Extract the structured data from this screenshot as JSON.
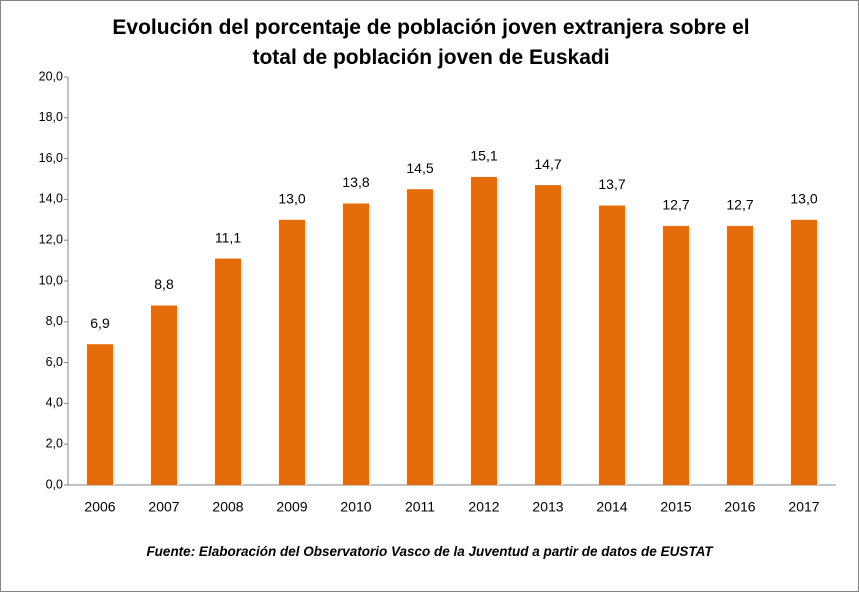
{
  "chart_data": {
    "type": "bar",
    "title": "Evolución del porcentaje de población joven extranjera sobre el total de población joven de Euskadi",
    "categories": [
      "2006",
      "2007",
      "2008",
      "2009",
      "2010",
      "2011",
      "2012",
      "2013",
      "2014",
      "2015",
      "2016",
      "2017"
    ],
    "values": [
      6.9,
      8.8,
      11.1,
      13.0,
      13.8,
      14.5,
      15.1,
      14.7,
      13.7,
      12.7,
      12.7,
      13.0
    ],
    "value_labels": [
      "6,9",
      "8,8",
      "11,1",
      "13,0",
      "13,8",
      "14,5",
      "15,1",
      "14,7",
      "13,7",
      "12,7",
      "12,7",
      "13,0"
    ],
    "color": "#e46c0a",
    "ylim": [
      0,
      20
    ],
    "yticks": [
      {
        "value": 0,
        "label": "0,0"
      },
      {
        "value": 2,
        "label": "2,0"
      },
      {
        "value": 4,
        "label": "4,0"
      },
      {
        "value": 6,
        "label": "6,0"
      },
      {
        "value": 8,
        "label": "8,0"
      },
      {
        "value": 10,
        "label": "10,0"
      },
      {
        "value": 12,
        "label": "12,0"
      },
      {
        "value": 14,
        "label": "14,0"
      },
      {
        "value": 16,
        "label": "16,0"
      },
      {
        "value": 18,
        "label": "18,0"
      },
      {
        "value": 20,
        "label": "20,0"
      }
    ],
    "grid": false,
    "source": "Fuente: Elaboración del Observatorio Vasco de la Juventud a partir de datos de EUSTAT"
  }
}
